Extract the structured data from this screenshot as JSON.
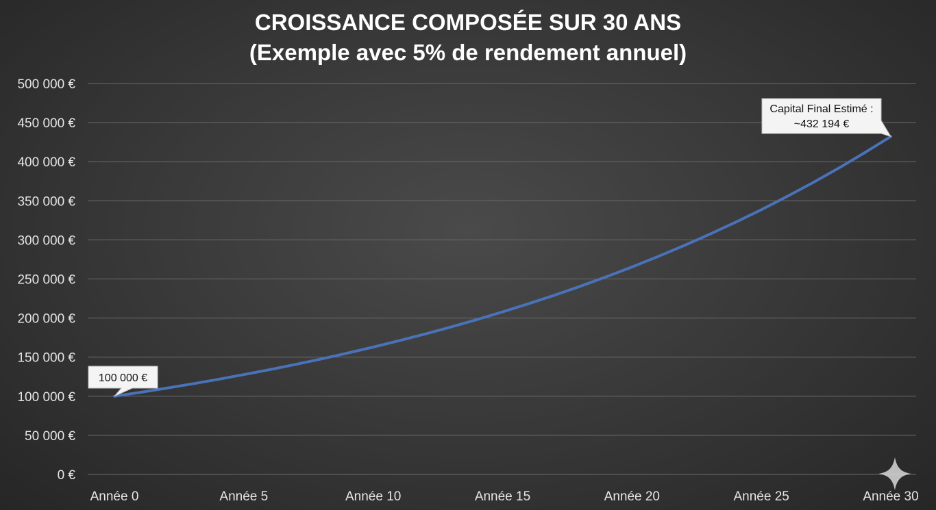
{
  "chart_data": {
    "type": "line",
    "title": "CROISSANCE COMPOSÉE SUR 30 ANS",
    "subtitle": "(Exemple avec 5% de rendement annuel)",
    "xlabel": "",
    "ylabel": "",
    "ylim": [
      0,
      500000
    ],
    "yticks": [
      0,
      50000,
      100000,
      150000,
      200000,
      250000,
      300000,
      350000,
      400000,
      450000,
      500000
    ],
    "ytick_labels": [
      "0 €",
      "50 000 €",
      "100 000 €",
      "150 000 €",
      "200 000 €",
      "250 000 €",
      "300 000 €",
      "350 000 €",
      "400 000 €",
      "450 000 €",
      "500 000 €"
    ],
    "xlim": [
      0,
      30
    ],
    "xticks": [
      0,
      5,
      10,
      15,
      20,
      25,
      30
    ],
    "xtick_labels": [
      "Année 0",
      "Année 5",
      "Année 10",
      "Année 15",
      "Année 20",
      "Année 25",
      "Année 30"
    ],
    "grid": true,
    "series_color": "#4a72b8",
    "series": [
      {
        "x": [
          0,
          1,
          2,
          3,
          4,
          5,
          6,
          7,
          8,
          9,
          10,
          11,
          12,
          13,
          14,
          15,
          16,
          17,
          18,
          19,
          20,
          21,
          22,
          23,
          24,
          25,
          26,
          27,
          28,
          29,
          30
        ],
        "values": [
          100000,
          105000,
          110250,
          115763,
          121551,
          127628,
          134010,
          140710,
          147746,
          155133,
          162889,
          171034,
          179586,
          188565,
          197993,
          207893,
          218287,
          229202,
          240662,
          252695,
          265330,
          278596,
          292526,
          307152,
          322510,
          338635,
          355567,
          373346,
          392013,
          411614,
          432194
        ]
      }
    ],
    "annotations": [
      {
        "x": 0,
        "y": 100000,
        "lines": [
          "100 000 €"
        ]
      },
      {
        "x": 30,
        "y": 432194,
        "lines": [
          "Capital Final Estimé :",
          "~432 194 €"
        ]
      }
    ]
  }
}
